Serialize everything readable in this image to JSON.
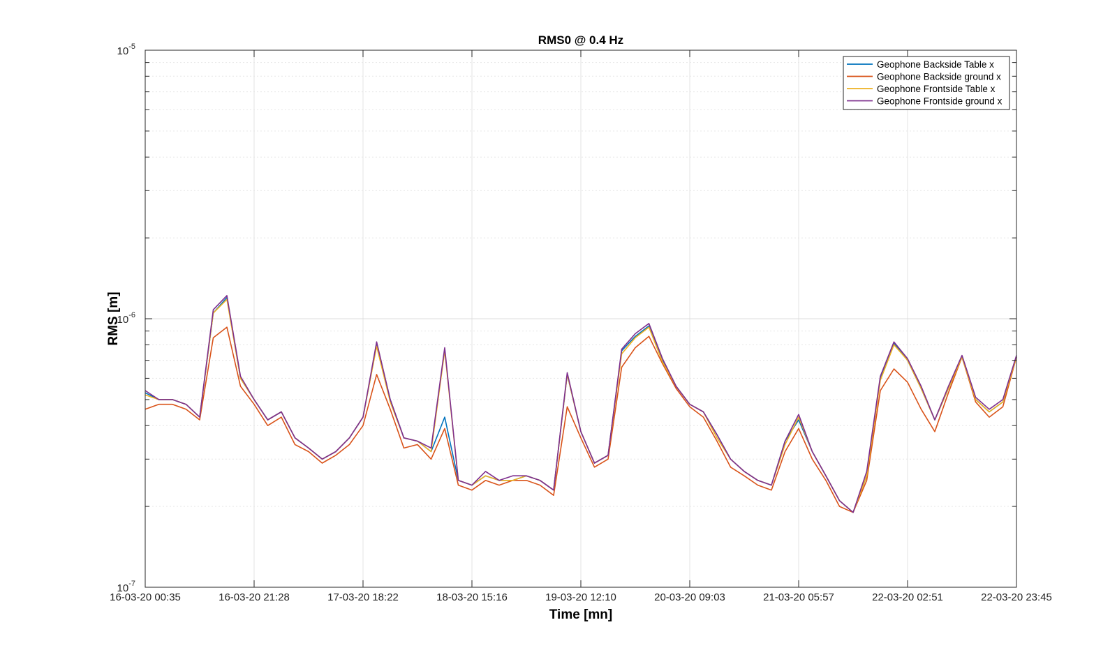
{
  "chart_data": {
    "type": "line",
    "title": "RMS0 @ 0.4 Hz",
    "xlabel": "Time [mn]",
    "ylabel": "RMS [m]",
    "yscale": "log",
    "ylim": [
      1e-07,
      1e-05
    ],
    "x_tick_labels": [
      "16-03-20 00:35",
      "16-03-20 21:28",
      "17-03-20 18:22",
      "18-03-20 15:16",
      "19-03-20 12:10",
      "20-03-20 09:03",
      "21-03-20 05:57",
      "22-03-20 02:51",
      "22-03-20 23:45"
    ],
    "y_tick_labels": [
      {
        "base": "10",
        "exp": "-7"
      },
      {
        "base": "10",
        "exp": "-6"
      },
      {
        "base": "10",
        "exp": "-5"
      }
    ],
    "grid": true,
    "legend_position": "top-right",
    "x_days": [
      0,
      0.125,
      0.25,
      0.375,
      0.5,
      0.625,
      0.75,
      0.875,
      1,
      1.125,
      1.25,
      1.375,
      1.5,
      1.625,
      1.75,
      1.875,
      2,
      2.125,
      2.25,
      2.375,
      2.5,
      2.625,
      2.75,
      2.875,
      3,
      3.125,
      3.25,
      3.375,
      3.5,
      3.625,
      3.75,
      3.875,
      4,
      4.125,
      4.25,
      4.375,
      4.5,
      4.625,
      4.75,
      4.875,
      5,
      5.125,
      5.25,
      5.375,
      5.5,
      5.625,
      5.75,
      5.875,
      6,
      6.125,
      6.25,
      6.375,
      6.5,
      6.625,
      6.75,
      6.875,
      7,
      7.125,
      7.25,
      7.375,
      7.5,
      7.625,
      7.75,
      7.875,
      8
    ],
    "series": [
      {
        "name": "Geophone Backside Table x",
        "color": "#0072BD",
        "values": [
          5.3e-07,
          5e-07,
          5e-07,
          4.8e-07,
          4.3e-07,
          1.05e-06,
          1.2e-06,
          6e-07,
          5e-07,
          4.2e-07,
          4.5e-07,
          3.6e-07,
          3.3e-07,
          3e-07,
          3.2e-07,
          3.6e-07,
          4.3e-07,
          8e-07,
          5e-07,
          3.6e-07,
          3.5e-07,
          3.2e-07,
          4.3e-07,
          2.5e-07,
          2.4e-07,
          2.6e-07,
          2.5e-07,
          2.5e-07,
          2.6e-07,
          2.5e-07,
          2.3e-07,
          6.2e-07,
          3.8e-07,
          2.9e-07,
          3.1e-07,
          7.6e-07,
          8.6e-07,
          9.4e-07,
          7e-07,
          5.6e-07,
          4.8e-07,
          4.5e-07,
          3.7e-07,
          3e-07,
          2.7e-07,
          2.5e-07,
          2.4e-07,
          3.5e-07,
          4.2e-07,
          3.2e-07,
          2.6e-07,
          2.1e-07,
          1.9e-07,
          2.6e-07,
          6e-07,
          8.1e-07,
          7e-07,
          5.5e-07,
          4.2e-07,
          5.5e-07,
          7.2e-07,
          5e-07,
          4.5e-07,
          4.9e-07,
          7.2e-07
        ]
      },
      {
        "name": "Geophone Backside ground x",
        "color": "#D95319",
        "values": [
          4.6e-07,
          4.8e-07,
          4.8e-07,
          4.6e-07,
          4.2e-07,
          8.5e-07,
          9.3e-07,
          5.6e-07,
          4.8e-07,
          4e-07,
          4.3e-07,
          3.4e-07,
          3.2e-07,
          2.9e-07,
          3.1e-07,
          3.4e-07,
          4e-07,
          6.2e-07,
          4.6e-07,
          3.3e-07,
          3.4e-07,
          3e-07,
          3.9e-07,
          2.4e-07,
          2.3e-07,
          2.5e-07,
          2.4e-07,
          2.5e-07,
          2.5e-07,
          2.4e-07,
          2.2e-07,
          4.7e-07,
          3.6e-07,
          2.8e-07,
          3e-07,
          6.6e-07,
          7.8e-07,
          8.6e-07,
          6.8e-07,
          5.5e-07,
          4.7e-07,
          4.3e-07,
          3.5e-07,
          2.8e-07,
          2.6e-07,
          2.4e-07,
          2.3e-07,
          3.2e-07,
          3.9e-07,
          3e-07,
          2.5e-07,
          2e-07,
          1.9e-07,
          2.5e-07,
          5.4e-07,
          6.5e-07,
          5.8e-07,
          4.6e-07,
          3.8e-07,
          5.3e-07,
          7.2e-07,
          4.9e-07,
          4.3e-07,
          4.7e-07,
          7.2e-07
        ]
      },
      {
        "name": "Geophone Frontside Table x",
        "color": "#EDB120",
        "values": [
          5.2e-07,
          5e-07,
          5e-07,
          4.8e-07,
          4.3e-07,
          1.05e-06,
          1.18e-06,
          6e-07,
          5e-07,
          4.2e-07,
          4.5e-07,
          3.6e-07,
          3.3e-07,
          3e-07,
          3.2e-07,
          3.6e-07,
          4.3e-07,
          7.9e-07,
          4.9e-07,
          3.6e-07,
          3.5e-07,
          3.2e-07,
          7.6e-07,
          2.5e-07,
          2.4e-07,
          2.6e-07,
          2.5e-07,
          2.5e-07,
          2.6e-07,
          2.5e-07,
          2.3e-07,
          6.2e-07,
          3.8e-07,
          2.9e-07,
          3.1e-07,
          7.4e-07,
          8.5e-07,
          9.3e-07,
          6.9e-07,
          5.6e-07,
          4.8e-07,
          4.5e-07,
          3.6e-07,
          3e-07,
          2.7e-07,
          2.5e-07,
          2.4e-07,
          3.4e-07,
          4.3e-07,
          3.2e-07,
          2.6e-07,
          2.1e-07,
          1.9e-07,
          2.6e-07,
          5.9e-07,
          8e-07,
          7e-07,
          5.5e-07,
          4.2e-07,
          5.5e-07,
          7.2e-07,
          5e-07,
          4.5e-07,
          4.9e-07,
          7.2e-07
        ]
      },
      {
        "name": "Geophone Frontside ground x",
        "color": "#7E2F8E",
        "values": [
          5.4e-07,
          5e-07,
          5e-07,
          4.8e-07,
          4.3e-07,
          1.08e-06,
          1.22e-06,
          6.1e-07,
          5e-07,
          4.2e-07,
          4.5e-07,
          3.6e-07,
          3.3e-07,
          3e-07,
          3.2e-07,
          3.6e-07,
          4.3e-07,
          8.2e-07,
          5e-07,
          3.6e-07,
          3.5e-07,
          3.3e-07,
          7.8e-07,
          2.5e-07,
          2.4e-07,
          2.7e-07,
          2.5e-07,
          2.6e-07,
          2.6e-07,
          2.5e-07,
          2.3e-07,
          6.3e-07,
          3.8e-07,
          2.9e-07,
          3.1e-07,
          7.7e-07,
          8.8e-07,
          9.6e-07,
          7.1e-07,
          5.6e-07,
          4.8e-07,
          4.5e-07,
          3.7e-07,
          3e-07,
          2.7e-07,
          2.5e-07,
          2.4e-07,
          3.5e-07,
          4.4e-07,
          3.2e-07,
          2.6e-07,
          2.1e-07,
          1.9e-07,
          2.7e-07,
          6.1e-07,
          8.2e-07,
          7.1e-07,
          5.6e-07,
          4.2e-07,
          5.6e-07,
          7.3e-07,
          5.1e-07,
          4.6e-07,
          5e-07,
          7.3e-07
        ]
      }
    ]
  }
}
